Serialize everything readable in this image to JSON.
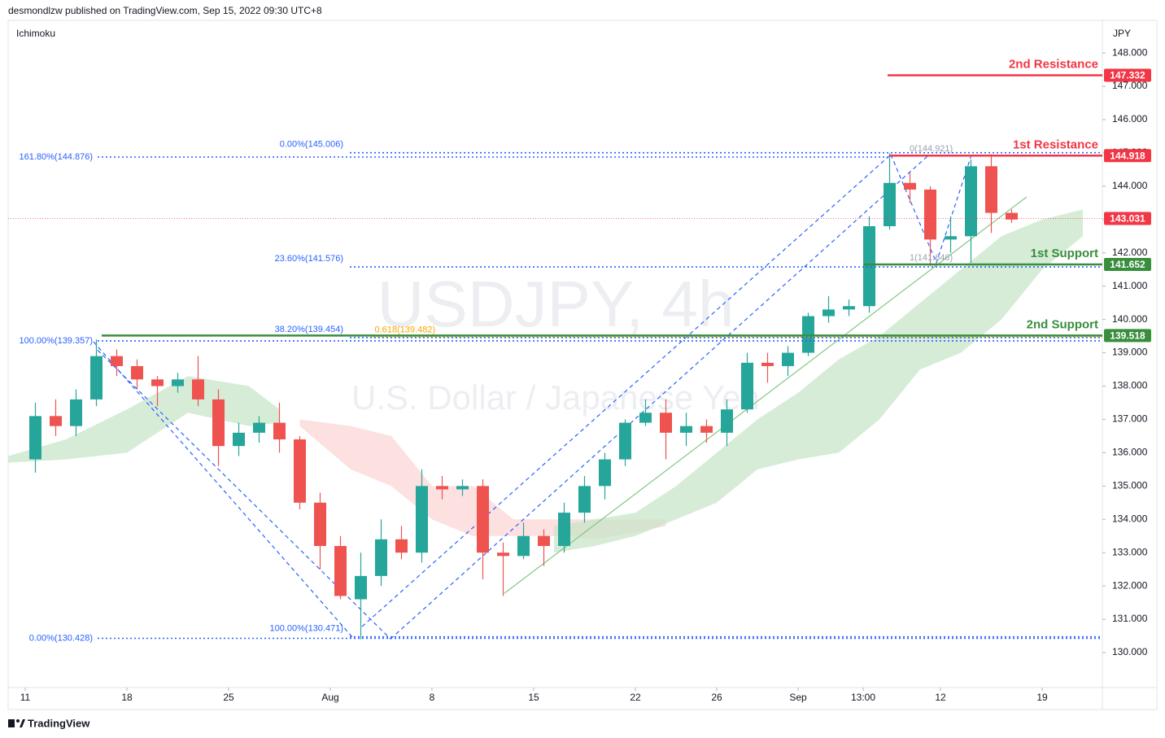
{
  "chart_data": {
    "type": "candlestick",
    "header": "desmondlzw published on TradingView.com, Sep 15, 2022 09:30 UTC+8",
    "indicator": "Ichimoku",
    "currency": "JPY",
    "watermark": "USDJPY, 4h",
    "watermark_subtitle": "U.S. Dollar / Japanese Yen",
    "footer": "TradingView",
    "up_color": "#26a69a",
    "down_color": "#ef5350",
    "xlim": [
      -0.84,
      52.96
    ],
    "ylim": [
      128.95,
      148.98
    ],
    "xticks": [
      {
        "value": 0,
        "label": "11"
      },
      {
        "value": 5,
        "label": "18"
      },
      {
        "value": 10,
        "label": "25"
      },
      {
        "value": 15,
        "label": "Aug"
      },
      {
        "value": 20,
        "label": "8"
      },
      {
        "value": 25,
        "label": "15"
      },
      {
        "value": 30,
        "label": "22"
      },
      {
        "value": 34,
        "label": "26"
      },
      {
        "value": 38,
        "label": "Sep"
      },
      {
        "value": 41.2,
        "label": "13:00"
      },
      {
        "value": 45,
        "label": "12"
      },
      {
        "value": 50,
        "label": "19"
      }
    ],
    "yticks": [
      {
        "value": 130,
        "label": "130.000"
      },
      {
        "value": 131,
        "label": "131.000"
      },
      {
        "value": 132,
        "label": "132.000"
      },
      {
        "value": 133,
        "label": "133.000"
      },
      {
        "value": 134,
        "label": "134.000"
      },
      {
        "value": 135,
        "label": "135.000"
      },
      {
        "value": 136,
        "label": "136.000"
      },
      {
        "value": 137,
        "label": "137.000"
      },
      {
        "value": 138,
        "label": "138.000"
      },
      {
        "value": 139,
        "label": "139.000"
      },
      {
        "value": 140,
        "label": "140.000"
      },
      {
        "value": 141,
        "label": "141.000"
      },
      {
        "value": 142,
        "label": "142.000"
      },
      {
        "value": 143,
        "label": "143.000"
      },
      {
        "value": 144,
        "label": "144.000"
      },
      {
        "value": 145,
        "label": "145.000"
      },
      {
        "value": 146,
        "label": "146.000"
      },
      {
        "value": 147,
        "label": "147.000"
      },
      {
        "value": 148,
        "label": "148.000"
      }
    ],
    "candles": [
      {
        "x": 0,
        "o": 135.8,
        "h": 137.5,
        "l": 135.4,
        "c": 137.1
      },
      {
        "x": 1,
        "o": 137.1,
        "h": 137.6,
        "l": 136.5,
        "c": 136.8
      },
      {
        "x": 2,
        "o": 136.8,
        "h": 137.9,
        "l": 136.5,
        "c": 137.6
      },
      {
        "x": 3,
        "o": 137.6,
        "h": 139.4,
        "l": 137.4,
        "c": 138.9
      },
      {
        "x": 4,
        "o": 138.9,
        "h": 139.1,
        "l": 138.3,
        "c": 138.6
      },
      {
        "x": 5,
        "o": 138.6,
        "h": 138.8,
        "l": 137.9,
        "c": 138.2
      },
      {
        "x": 6,
        "o": 138.2,
        "h": 138.3,
        "l": 137.4,
        "c": 138.0
      },
      {
        "x": 7,
        "o": 138.0,
        "h": 138.4,
        "l": 137.8,
        "c": 138.2
      },
      {
        "x": 8,
        "o": 138.2,
        "h": 138.9,
        "l": 137.4,
        "c": 137.6
      },
      {
        "x": 9,
        "o": 137.6,
        "h": 137.9,
        "l": 135.6,
        "c": 136.2
      },
      {
        "x": 10,
        "o": 136.2,
        "h": 136.9,
        "l": 135.9,
        "c": 136.6
      },
      {
        "x": 11,
        "o": 136.6,
        "h": 137.1,
        "l": 136.3,
        "c": 136.9
      },
      {
        "x": 12,
        "o": 136.9,
        "h": 137.5,
        "l": 136.0,
        "c": 136.4
      },
      {
        "x": 13,
        "o": 136.4,
        "h": 136.5,
        "l": 134.3,
        "c": 134.5
      },
      {
        "x": 14,
        "o": 134.5,
        "h": 134.8,
        "l": 132.5,
        "c": 133.2
      },
      {
        "x": 15,
        "o": 133.2,
        "h": 133.5,
        "l": 131.6,
        "c": 131.7
      },
      {
        "x": 16,
        "o": 131.6,
        "h": 133.0,
        "l": 130.4,
        "c": 132.3
      },
      {
        "x": 17,
        "o": 132.3,
        "h": 134.0,
        "l": 132.0,
        "c": 133.4
      },
      {
        "x": 18,
        "o": 133.4,
        "h": 133.8,
        "l": 132.8,
        "c": 133.0
      },
      {
        "x": 19,
        "o": 133.0,
        "h": 135.5,
        "l": 132.7,
        "c": 135.0
      },
      {
        "x": 20,
        "o": 135.0,
        "h": 135.3,
        "l": 134.6,
        "c": 134.9
      },
      {
        "x": 21,
        "o": 134.9,
        "h": 135.2,
        "l": 134.7,
        "c": 135.0
      },
      {
        "x": 22,
        "o": 135.0,
        "h": 135.2,
        "l": 132.2,
        "c": 133.0
      },
      {
        "x": 23,
        "o": 133.0,
        "h": 133.3,
        "l": 131.7,
        "c": 132.9
      },
      {
        "x": 24,
        "o": 132.9,
        "h": 133.9,
        "l": 132.8,
        "c": 133.5
      },
      {
        "x": 25,
        "o": 133.5,
        "h": 133.7,
        "l": 132.6,
        "c": 133.2
      },
      {
        "x": 26,
        "o": 133.2,
        "h": 134.5,
        "l": 133.0,
        "c": 134.2
      },
      {
        "x": 27,
        "o": 134.2,
        "h": 135.3,
        "l": 133.9,
        "c": 135.0
      },
      {
        "x": 28,
        "o": 135.0,
        "h": 136.0,
        "l": 134.6,
        "c": 135.8
      },
      {
        "x": 29,
        "o": 135.8,
        "h": 137.0,
        "l": 135.6,
        "c": 136.9
      },
      {
        "x": 30,
        "o": 136.9,
        "h": 137.6,
        "l": 136.8,
        "c": 137.2
      },
      {
        "x": 31,
        "o": 137.2,
        "h": 137.6,
        "l": 135.8,
        "c": 136.6
      },
      {
        "x": 32,
        "o": 136.6,
        "h": 137.2,
        "l": 136.2,
        "c": 136.8
      },
      {
        "x": 33,
        "o": 136.8,
        "h": 137.0,
        "l": 136.3,
        "c": 136.6
      },
      {
        "x": 34,
        "o": 136.6,
        "h": 137.6,
        "l": 136.2,
        "c": 137.3
      },
      {
        "x": 35,
        "o": 137.3,
        "h": 139.0,
        "l": 137.2,
        "c": 138.7
      },
      {
        "x": 36,
        "o": 138.7,
        "h": 139.0,
        "l": 138.1,
        "c": 138.6
      },
      {
        "x": 37,
        "o": 138.6,
        "h": 139.2,
        "l": 138.3,
        "c": 139.0
      },
      {
        "x": 38,
        "o": 139.0,
        "h": 140.2,
        "l": 138.9,
        "c": 140.1
      },
      {
        "x": 39,
        "o": 140.1,
        "h": 140.7,
        "l": 139.9,
        "c": 140.3
      },
      {
        "x": 40,
        "o": 140.3,
        "h": 140.6,
        "l": 140.1,
        "c": 140.4
      },
      {
        "x": 41,
        "o": 140.4,
        "h": 143.1,
        "l": 140.2,
        "c": 142.8
      },
      {
        "x": 42,
        "o": 142.8,
        "h": 144.99,
        "l": 142.7,
        "c": 144.1
      },
      {
        "x": 43,
        "o": 144.1,
        "h": 144.4,
        "l": 143.5,
        "c": 143.9
      },
      {
        "x": 44,
        "o": 143.9,
        "h": 144.0,
        "l": 141.6,
        "c": 142.4
      },
      {
        "x": 45,
        "o": 142.4,
        "h": 143.1,
        "l": 142.0,
        "c": 142.5
      },
      {
        "x": 46,
        "o": 142.5,
        "h": 144.8,
        "l": 141.7,
        "c": 144.6
      },
      {
        "x": 47,
        "o": 144.6,
        "h": 144.96,
        "l": 142.6,
        "c": 143.2
      },
      {
        "x": 48,
        "o": 143.2,
        "h": 143.3,
        "l": 142.9,
        "c": 143.0
      }
    ],
    "clouds": [
      {
        "color": "#c8e6c9",
        "x": [
          -0.84,
          2,
          5,
          8,
          11,
          12.5
        ],
        "upper": [
          135.9,
          136.4,
          137.3,
          138.3,
          138.0,
          137.3
        ],
        "lower": [
          135.7,
          135.8,
          136.0,
          137.2,
          136.8,
          136.9
        ]
      },
      {
        "color": "#fcd5d5",
        "x": [
          13.5,
          16,
          18,
          20,
          22,
          24,
          26,
          28,
          30,
          31.5
        ],
        "upper": [
          137.0,
          136.8,
          136.5,
          135.0,
          135.0,
          134.0,
          134.0,
          134.0,
          134.0,
          134.0
        ],
        "lower": [
          136.8,
          135.5,
          135.0,
          134.0,
          133.5,
          133.5,
          133.5,
          133.4,
          133.6,
          133.8
        ]
      },
      {
        "color": "#c8e6c9",
        "x": [
          26,
          28,
          30,
          32,
          34,
          36,
          38,
          40,
          42,
          44,
          46,
          48,
          50,
          52
        ],
        "upper": [
          133.8,
          134.0,
          134.2,
          135.0,
          136.0,
          137.0,
          137.8,
          138.8,
          139.5,
          140.5,
          141.5,
          142.5,
          143.0,
          143.3
        ],
        "lower": [
          133.0,
          133.2,
          133.5,
          134.0,
          134.5,
          135.5,
          135.8,
          136.0,
          137.0,
          138.5,
          139.0,
          140.0,
          141.5,
          142.5
        ]
      }
    ],
    "fibs": [
      {
        "color": "#2962ff",
        "from": 3.56,
        "label_side": "level",
        "levels": [
          {
            "value": 144.876,
            "label": "161.80%(144.876)",
            "to": 42.4
          },
          {
            "value": 139.357,
            "label": "100.00%(139.357)",
            "to": 52.96
          },
          {
            "value": 130.428,
            "label": "0.00%(130.428)",
            "to": 52.96
          }
        ]
      },
      {
        "color": "#2962ff",
        "from": 15.96,
        "label_side": "above",
        "levels": [
          {
            "value": 145.006,
            "label": "0.00%(145.006)",
            "to": 52.96
          },
          {
            "value": 141.576,
            "label": "23.60%(141.576)",
            "to": 52.96
          },
          {
            "value": 139.454,
            "label": "38.20%(139.454)",
            "to": 52.96
          },
          {
            "value": 130.471,
            "label": "100.00%(130.471)",
            "to": 52.96
          }
        ]
      },
      {
        "color": "#f7a600",
        "from": 17.1,
        "label_side": "right",
        "levels": [
          {
            "value": 139.482,
            "label": "0.618(139.482)",
            "to": 52.96
          }
        ]
      },
      {
        "color": "#9aa0ad",
        "from": 43.4,
        "label_side": "right",
        "levels": [
          {
            "value": 144.921,
            "label": "0(144.921)",
            "to": 43.4
          },
          {
            "value": 141.646,
            "label": "1(141.646)",
            "to": 43.4
          }
        ]
      }
    ],
    "levels": [
      {
        "name": "2nd Resistance",
        "value": 147.332,
        "label": "147.332",
        "color": "#f23645",
        "from": 42.4
      },
      {
        "name": "1st Resistance",
        "value": 144.918,
        "label": "144.918",
        "color": "#f23645",
        "from": 42.5
      },
      {
        "value": 143.031,
        "label": "143.031",
        "color": "#f23645",
        "from": -0.84,
        "dotted": true
      },
      {
        "name": "1st Support",
        "value": 141.652,
        "label": "141.652",
        "color": "#388e3c",
        "from": 41.2
      },
      {
        "name": "2nd Support",
        "value": 139.518,
        "label": "139.518",
        "color": "#388e3c",
        "from": 3.76
      }
    ],
    "trendlines": [
      {
        "color": "#2962ff",
        "dash": true,
        "x": [
          3.36,
          16.16
        ],
        "y": [
          139.33,
          130.41
        ]
      },
      {
        "color": "#2962ff",
        "dash": true,
        "x": [
          3.56,
          17.96
        ],
        "y": [
          139.08,
          130.41
        ]
      },
      {
        "color": "#2962ff",
        "dash": true,
        "x": [
          16.56,
          42.56
        ],
        "y": [
          130.78,
          144.95
        ]
      },
      {
        "color": "#2962ff",
        "dash": true,
        "x": [
          17.96,
          44.36
        ],
        "y": [
          130.41,
          144.9
        ]
      },
      {
        "color": "#2962ff",
        "dash": true,
        "x": [
          42.56,
          44.8,
          46.5
        ],
        "y": [
          144.95,
          141.7,
          144.9
        ]
      },
      {
        "color": "#81c784",
        "dash": false,
        "x": [
          23.56,
          49.24
        ],
        "y": [
          131.78,
          143.68
        ]
      }
    ]
  }
}
